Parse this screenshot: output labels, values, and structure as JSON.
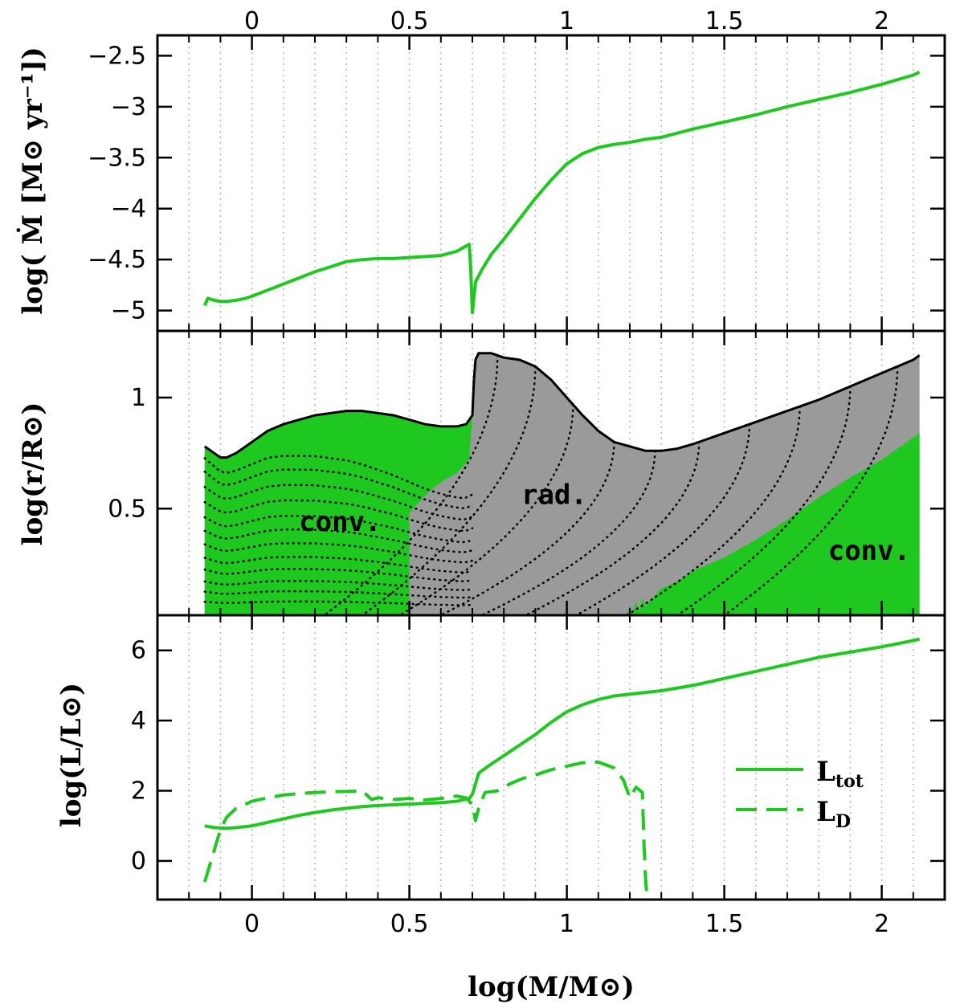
{
  "colors": {
    "green": "#1ec81e",
    "gray": "#9a9a9a",
    "axis": "#000000",
    "grid": "#b4b4b4"
  },
  "chart_data": [
    {
      "id": "mdot",
      "type": "line",
      "ylabel": "log( Ṁ [M⊙ yr⁻¹])",
      "ylim": [
        -5.2,
        -2.3
      ],
      "yticks": [
        -5,
        -4.5,
        -4,
        -3.5,
        -3,
        -2.5
      ],
      "ytick_labels": [
        "−5",
        "−4.5",
        "−4",
        "−3.5",
        "−3",
        "−2.5"
      ],
      "series": [
        {
          "name": "Mdot",
          "style": "solid",
          "x": [
            -0.15,
            -0.14,
            -0.12,
            -0.1,
            -0.08,
            -0.05,
            -0.02,
            0.0,
            0.05,
            0.1,
            0.15,
            0.2,
            0.25,
            0.3,
            0.35,
            0.4,
            0.45,
            0.5,
            0.55,
            0.6,
            0.65,
            0.69,
            0.695,
            0.7,
            0.71,
            0.73,
            0.76,
            0.8,
            0.85,
            0.9,
            0.95,
            1.0,
            1.05,
            1.1,
            1.15,
            1.2,
            1.25,
            1.3,
            1.35,
            1.4,
            1.5,
            1.6,
            1.7,
            1.8,
            1.9,
            2.0,
            2.1,
            2.12
          ],
          "y": [
            -4.95,
            -4.88,
            -4.9,
            -4.91,
            -4.91,
            -4.9,
            -4.88,
            -4.86,
            -4.8,
            -4.74,
            -4.68,
            -4.62,
            -4.57,
            -4.52,
            -4.5,
            -4.49,
            -4.49,
            -4.48,
            -4.47,
            -4.46,
            -4.42,
            -4.35,
            -4.6,
            -5.02,
            -4.72,
            -4.6,
            -4.45,
            -4.3,
            -4.1,
            -3.9,
            -3.72,
            -3.56,
            -3.46,
            -3.4,
            -3.37,
            -3.35,
            -3.32,
            -3.3,
            -3.26,
            -3.22,
            -3.15,
            -3.08,
            -3.0,
            -2.93,
            -2.86,
            -2.78,
            -2.69,
            -2.66
          ]
        }
      ]
    },
    {
      "id": "structure",
      "type": "area",
      "ylabel": "log(r/R⊙)",
      "ylim": [
        0.02,
        1.3
      ],
      "yticks": [
        0.5,
        1
      ],
      "ytick_labels": [
        "0.5",
        "1"
      ],
      "surface": {
        "x": [
          -0.15,
          -0.13,
          -0.1,
          -0.08,
          -0.05,
          0.0,
          0.05,
          0.1,
          0.15,
          0.2,
          0.25,
          0.3,
          0.35,
          0.4,
          0.45,
          0.5,
          0.55,
          0.6,
          0.65,
          0.68,
          0.7,
          0.705,
          0.71,
          0.72,
          0.74,
          0.76,
          0.8,
          0.85,
          0.9,
          0.95,
          1.0,
          1.05,
          1.1,
          1.15,
          1.2,
          1.25,
          1.3,
          1.35,
          1.4,
          1.5,
          1.6,
          1.7,
          1.8,
          1.9,
          2.0,
          2.1,
          2.12
        ],
        "y": [
          0.78,
          0.76,
          0.73,
          0.73,
          0.75,
          0.8,
          0.85,
          0.88,
          0.9,
          0.92,
          0.93,
          0.94,
          0.94,
          0.93,
          0.92,
          0.9,
          0.88,
          0.87,
          0.87,
          0.88,
          0.92,
          1.08,
          1.17,
          1.2,
          1.2,
          1.2,
          1.18,
          1.17,
          1.14,
          1.08,
          1.0,
          0.92,
          0.85,
          0.8,
          0.78,
          0.76,
          0.76,
          0.77,
          0.79,
          0.84,
          0.89,
          0.94,
          0.99,
          1.05,
          1.11,
          1.17,
          1.19
        ]
      },
      "conv_left": {
        "x": [
          0.5,
          0.5,
          0.55,
          0.6,
          0.65,
          0.69,
          0.7
        ],
        "y": [
          0.02,
          0.48,
          0.56,
          0.62,
          0.66,
          0.72,
          0.92
        ]
      },
      "conv_right": {
        "x": [
          1.19,
          1.2,
          1.21,
          1.22,
          1.23,
          1.24,
          1.25,
          1.3,
          1.35,
          1.4,
          1.5,
          1.6,
          1.7,
          1.8,
          1.9,
          2.0,
          2.1,
          2.12
        ],
        "y": [
          0.02,
          0.06,
          0.03,
          0.08,
          0.04,
          0.1,
          0.06,
          0.14,
          0.17,
          0.22,
          0.28,
          0.36,
          0.45,
          0.55,
          0.64,
          0.72,
          0.82,
          0.84
        ]
      },
      "labels": [
        {
          "text": "conv.",
          "x": 0.28,
          "y": 0.4
        },
        {
          "text": "rad.",
          "x": 0.96,
          "y": 0.52
        },
        {
          "text": "conv.",
          "x": 1.96,
          "y": 0.27
        }
      ]
    },
    {
      "id": "luminosity",
      "type": "line",
      "ylabel": "log(L/L⊙)",
      "ylim": [
        -1.1,
        7.0
      ],
      "yticks": [
        0,
        2,
        4,
        6
      ],
      "ytick_labels": [
        "0",
        "2",
        "4",
        "6"
      ],
      "series": [
        {
          "name": "L_tot",
          "style": "solid",
          "x": [
            -0.15,
            -0.12,
            -0.08,
            -0.05,
            0.0,
            0.05,
            0.1,
            0.15,
            0.2,
            0.25,
            0.3,
            0.35,
            0.4,
            0.45,
            0.5,
            0.55,
            0.6,
            0.65,
            0.69,
            0.7,
            0.71,
            0.72,
            0.75,
            0.8,
            0.85,
            0.9,
            0.95,
            1.0,
            1.05,
            1.1,
            1.15,
            1.2,
            1.3,
            1.4,
            1.5,
            1.6,
            1.7,
            1.8,
            1.9,
            2.0,
            2.1,
            2.12
          ],
          "y": [
            1.0,
            0.95,
            0.93,
            0.95,
            1.0,
            1.1,
            1.2,
            1.3,
            1.38,
            1.45,
            1.5,
            1.55,
            1.58,
            1.6,
            1.62,
            1.64,
            1.66,
            1.7,
            1.78,
            1.9,
            2.2,
            2.5,
            2.7,
            3.0,
            3.3,
            3.6,
            3.95,
            4.25,
            4.45,
            4.6,
            4.7,
            4.75,
            4.85,
            5.0,
            5.2,
            5.4,
            5.6,
            5.8,
            5.95,
            6.1,
            6.28,
            6.32
          ]
        },
        {
          "name": "L_D",
          "style": "dashed",
          "x": [
            -0.15,
            -0.12,
            -0.1,
            -0.08,
            -0.05,
            0.0,
            0.05,
            0.1,
            0.15,
            0.2,
            0.25,
            0.3,
            0.35,
            0.38,
            0.4,
            0.45,
            0.5,
            0.55,
            0.6,
            0.65,
            0.68,
            0.7,
            0.71,
            0.72,
            0.74,
            0.78,
            0.82,
            0.86,
            0.9,
            0.95,
            1.0,
            1.05,
            1.1,
            1.15,
            1.18,
            1.2,
            1.22,
            1.24,
            1.245,
            1.25,
            1.255
          ],
          "y": [
            -0.6,
            0.3,
            0.9,
            1.25,
            1.5,
            1.7,
            1.8,
            1.88,
            1.92,
            1.95,
            1.97,
            1.98,
            2.0,
            1.75,
            1.8,
            1.75,
            1.78,
            1.74,
            1.78,
            1.85,
            1.8,
            1.6,
            1.15,
            1.5,
            1.95,
            2.0,
            2.2,
            2.35,
            2.45,
            2.6,
            2.7,
            2.8,
            2.82,
            2.65,
            2.3,
            1.8,
            2.1,
            1.95,
            0.5,
            -0.5,
            -1.1
          ]
        }
      ],
      "legend": [
        {
          "name": "L_tot",
          "style": "solid",
          "base": "L",
          "sub": "tot"
        },
        {
          "name": "L_D",
          "style": "dashed",
          "base": "L",
          "sub": "D"
        }
      ]
    }
  ],
  "x_axis": {
    "label": "log(M/M⊙)",
    "xlim": [
      -0.3,
      2.2
    ],
    "ticks": [
      0,
      0.5,
      1,
      1.5,
      2
    ],
    "tick_labels": [
      "0",
      "0.5",
      "1",
      "1.5",
      "2"
    ],
    "gridlines": [
      -0.2,
      -0.1,
      0.0,
      0.1,
      0.2,
      0.3,
      0.4,
      0.5,
      0.6,
      0.7,
      0.8,
      0.9,
      1.0,
      1.1,
      1.2,
      1.3,
      1.4,
      1.5,
      1.6,
      1.7,
      1.8,
      1.9,
      2.0,
      2.1
    ]
  }
}
